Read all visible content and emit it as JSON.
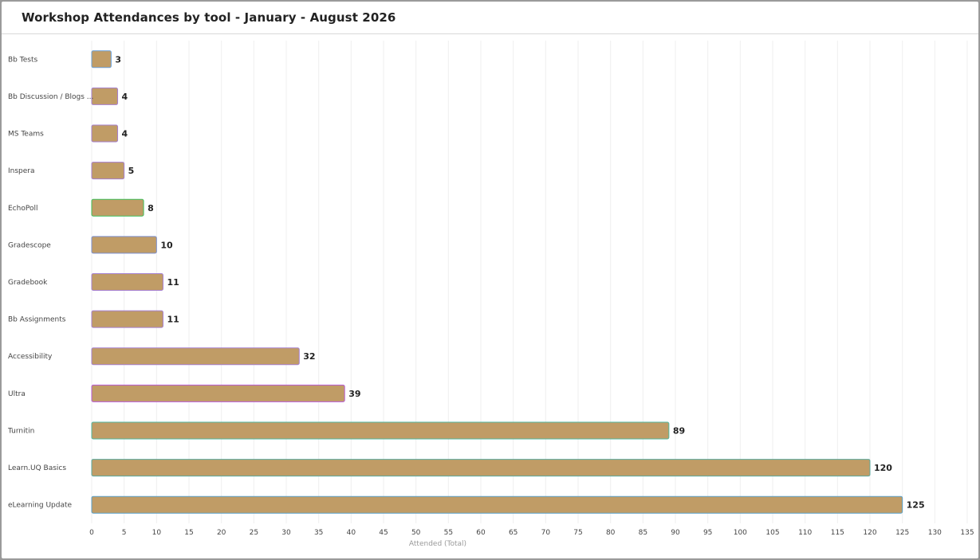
{
  "chart_data": {
    "type": "bar",
    "orientation": "horizontal",
    "title": "Workshop Attendances by tool - January - August 2026",
    "xlabel": "Attended (Total)",
    "ylabel": "",
    "xlim": [
      0,
      135
    ],
    "xticks": [
      0,
      5,
      10,
      15,
      20,
      25,
      30,
      35,
      40,
      45,
      50,
      55,
      60,
      65,
      70,
      75,
      80,
      85,
      90,
      95,
      100,
      105,
      110,
      115,
      120,
      125,
      130,
      135
    ],
    "grid": true,
    "categories": [
      "Bb Tests",
      "Bb Discussion / Blogs ...",
      "MS Teams",
      "Inspera",
      "EchoPoll",
      "Gradescope",
      "Gradebook",
      "Bb Assignments",
      "Accessibility",
      "Ultra",
      "Turnitin",
      "Learn.UQ Basics",
      "eLearning Update"
    ],
    "values": [
      3,
      4,
      4,
      5,
      8,
      10,
      11,
      11,
      32,
      39,
      89,
      120,
      125
    ],
    "bar_color": "#c09c66",
    "bar_outlines": [
      "#6a9fd8",
      "#a57fcf",
      "#a57fcf",
      "#a57fcf",
      "#3fbf5a",
      "#7b8fd0",
      "#a57fcf",
      "#a57fcf",
      "#a57fcf",
      "#b85ad6",
      "#4fb8a0",
      "#5aaaa0",
      "#5aa0c8"
    ]
  }
}
